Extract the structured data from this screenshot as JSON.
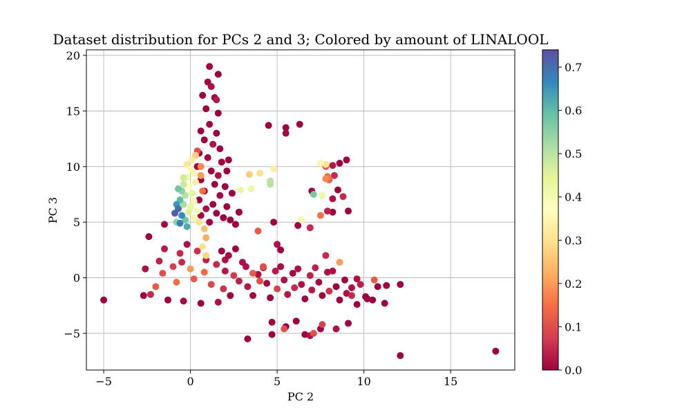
{
  "chart_data": {
    "type": "scatter",
    "title": "Dataset distribution for PCs 2 and 3; Colored by amount of LINALOOL",
    "xlabel": "PC 2",
    "ylabel": "PC 3",
    "xlim": [
      -6.0,
      18.7
    ],
    "ylim": [
      -8.3,
      20.5
    ],
    "xticks": [
      -5,
      0,
      5,
      10,
      15
    ],
    "xtick_labels": [
      "−5",
      "0",
      "5",
      "10",
      "15"
    ],
    "yticks": [
      -5,
      0,
      5,
      10,
      15,
      20
    ],
    "ytick_labels": [
      "−5",
      "0",
      "5",
      "10",
      "15",
      "20"
    ],
    "grid": true,
    "colormap": "Spectral",
    "colorbar": {
      "range": [
        0.0,
        0.74
      ],
      "ticks": [
        0.0,
        0.1,
        0.2,
        0.3,
        0.4,
        0.5,
        0.6,
        0.7
      ],
      "tick_labels": [
        "0.0",
        "0.1",
        "0.2",
        "0.3",
        "0.4",
        "0.5",
        "0.6",
        "0.7"
      ]
    },
    "points": [
      [
        -5.0,
        -2.0,
        0.0
      ],
      [
        -2.6,
        0.8,
        0.02
      ],
      [
        -2.4,
        3.7,
        0.0
      ],
      [
        -1.5,
        4.8,
        0.01
      ],
      [
        -2.7,
        -1.6,
        0.0
      ],
      [
        -2.3,
        -1.5,
        0.05
      ],
      [
        -2.0,
        -0.8,
        0.12
      ],
      [
        -1.5,
        2.6,
        0.03
      ],
      [
        -1.8,
        1.5,
        0.04
      ],
      [
        -1.0,
        1.0,
        0.08
      ],
      [
        -0.6,
        2.2,
        0.05
      ],
      [
        -0.2,
        3.0,
        0.02
      ],
      [
        0.4,
        2.4,
        0.06
      ],
      [
        0.9,
        1.6,
        0.04
      ],
      [
        1.5,
        1.2,
        0.05
      ],
      [
        2.0,
        0.6,
        0.03
      ],
      [
        2.5,
        0.2,
        0.07
      ],
      [
        3.0,
        1.4,
        0.02
      ],
      [
        -1.3,
        -2.0,
        0.0
      ],
      [
        -0.4,
        -2.1,
        0.01
      ],
      [
        0.6,
        -2.3,
        0.0
      ],
      [
        1.6,
        -2.2,
        0.02
      ],
      [
        2.3,
        -1.6,
        0.0
      ],
      [
        -0.8,
        -0.4,
        0.15
      ],
      [
        0.2,
        -0.1,
        0.12
      ],
      [
        0.8,
        0.5,
        0.14
      ],
      [
        1.2,
        -0.6,
        0.09
      ],
      [
        1.9,
        -1.0,
        0.06
      ],
      [
        0.0,
        0.8,
        0.2
      ],
      [
        -1.6,
        0.4,
        0.1
      ],
      [
        -0.5,
        1.4,
        0.05
      ],
      [
        2.8,
        -0.3,
        0.04
      ],
      [
        3.3,
        -0.8,
        0.03
      ],
      [
        3.9,
        0.3,
        0.02
      ],
      [
        4.4,
        -0.5,
        0.01
      ],
      [
        4.9,
        0.6,
        0.03
      ],
      [
        5.4,
        -0.2,
        0.02
      ],
      [
        5.9,
        0.4,
        0.01
      ],
      [
        6.4,
        -0.6,
        0.02
      ],
      [
        6.9,
        0.2,
        0.04
      ],
      [
        7.4,
        -0.4,
        0.01
      ],
      [
        7.9,
        0.5,
        0.02
      ],
      [
        8.4,
        -0.8,
        0.0
      ],
      [
        8.9,
        -0.2,
        0.01
      ],
      [
        9.3,
        -0.9,
        0.02
      ],
      [
        9.8,
        -0.6,
        0.04
      ],
      [
        10.1,
        -1.7,
        0.0
      ],
      [
        3.6,
        -1.6,
        0.01
      ],
      [
        4.6,
        -1.8,
        0.0
      ],
      [
        5.6,
        -1.5,
        0.03
      ],
      [
        6.6,
        -1.9,
        0.0
      ],
      [
        7.6,
        -1.6,
        0.01
      ],
      [
        8.6,
        -2.0,
        0.0
      ],
      [
        3.2,
        1.0,
        0.02
      ],
      [
        4.2,
        0.9,
        0.03
      ],
      [
        5.2,
        1.0,
        0.01
      ],
      [
        6.2,
        0.8,
        0.02
      ],
      [
        7.2,
        0.9,
        0.04
      ],
      [
        8.2,
        0.6,
        0.02
      ],
      [
        5.0,
        -1.0,
        0.08
      ],
      [
        6.0,
        -0.9,
        0.05
      ],
      [
        7.0,
        -1.1,
        0.03
      ],
      [
        8.0,
        -1.2,
        0.06
      ],
      [
        9.0,
        -1.4,
        0.02
      ],
      [
        4.0,
        -0.3,
        0.1
      ],
      [
        2.0,
        1.6,
        0.02
      ],
      [
        1.8,
        2.4,
        0.0
      ],
      [
        2.6,
        2.6,
        0.0
      ],
      [
        2.2,
        2.0,
        0.01
      ],
      [
        1.1,
        19.0,
        0.0
      ],
      [
        1.6,
        18.3,
        0.0
      ],
      [
        1.0,
        17.6,
        0.0
      ],
      [
        1.2,
        17.2,
        0.02
      ],
      [
        0.7,
        16.4,
        0.0
      ],
      [
        1.4,
        16.2,
        0.0
      ],
      [
        1.5,
        16.0,
        0.03
      ],
      [
        0.9,
        15.2,
        0.0
      ],
      [
        1.6,
        14.8,
        0.0
      ],
      [
        1.1,
        13.8,
        0.01
      ],
      [
        0.6,
        13.2,
        0.0
      ],
      [
        1.5,
        13.0,
        0.0
      ],
      [
        0.8,
        12.4,
        0.0
      ],
      [
        1.3,
        12.0,
        0.02
      ],
      [
        1.7,
        11.6,
        0.0
      ],
      [
        0.5,
        11.2,
        0.0
      ],
      [
        1.0,
        10.8,
        0.01
      ],
      [
        1.8,
        10.4,
        0.0
      ],
      [
        0.4,
        10.0,
        0.0
      ],
      [
        1.2,
        9.6,
        0.0
      ],
      [
        1.6,
        9.2,
        0.02
      ],
      [
        0.6,
        8.8,
        0.0
      ],
      [
        1.4,
        8.4,
        0.0
      ],
      [
        2.0,
        8.2,
        0.0
      ],
      [
        0.8,
        7.8,
        0.0
      ],
      [
        1.7,
        7.4,
        0.01
      ],
      [
        0.5,
        7.0,
        0.0
      ],
      [
        1.3,
        6.6,
        0.0
      ],
      [
        2.1,
        6.4,
        0.0
      ],
      [
        0.9,
        6.2,
        0.02
      ],
      [
        1.5,
        5.8,
        0.0
      ],
      [
        0.6,
        5.6,
        0.0
      ],
      [
        1.9,
        5.4,
        0.0
      ],
      [
        1.1,
        5.0,
        0.0
      ],
      [
        2.3,
        5.2,
        0.0
      ],
      [
        2.6,
        4.8,
        0.0
      ],
      [
        2.8,
        5.9,
        0.0
      ],
      [
        2.4,
        7.6,
        0.0
      ],
      [
        2.2,
        10.6,
        0.0
      ],
      [
        2.1,
        9.6,
        0.0
      ],
      [
        0.4,
        11.4,
        0.1
      ],
      [
        0.1,
        10.6,
        0.32
      ],
      [
        0.0,
        9.8,
        0.35
      ],
      [
        -0.2,
        9.0,
        0.42
      ],
      [
        -0.4,
        8.4,
        0.48
      ],
      [
        -0.5,
        7.8,
        0.55
      ],
      [
        -0.3,
        7.4,
        0.5
      ],
      [
        -0.6,
        7.0,
        0.6
      ],
      [
        -0.8,
        6.6,
        0.65
      ],
      [
        -0.7,
        6.2,
        0.7
      ],
      [
        -0.9,
        5.8,
        0.72
      ],
      [
        -0.5,
        5.6,
        0.66
      ],
      [
        -0.3,
        5.2,
        0.58
      ],
      [
        -0.6,
        4.9,
        0.68
      ],
      [
        -0.2,
        4.6,
        0.62
      ],
      [
        -0.8,
        5.0,
        0.55
      ],
      [
        -0.1,
        5.9,
        0.45
      ],
      [
        -0.4,
        6.6,
        0.52
      ],
      [
        0.2,
        6.9,
        0.4
      ],
      [
        -0.1,
        8.2,
        0.38
      ],
      [
        0.3,
        8.6,
        0.33
      ],
      [
        0.1,
        7.6,
        0.44
      ],
      [
        0.4,
        6.0,
        0.36
      ],
      [
        0.5,
        5.0,
        0.3
      ],
      [
        0.8,
        4.4,
        0.25
      ],
      [
        0.9,
        3.6,
        0.22
      ],
      [
        0.7,
        2.8,
        0.3
      ],
      [
        0.9,
        2.0,
        0.28
      ],
      [
        0.2,
        9.4,
        0.41
      ],
      [
        -0.2,
        10.2,
        0.31
      ],
      [
        0.3,
        11.0,
        0.27
      ],
      [
        0.6,
        10.0,
        0.18
      ],
      [
        0.6,
        9.2,
        0.2
      ],
      [
        0.7,
        7.8,
        0.15
      ],
      [
        -0.4,
        9.0,
        0.47
      ],
      [
        -0.7,
        8.0,
        0.58
      ],
      [
        0.0,
        6.4,
        0.43
      ],
      [
        0.2,
        5.4,
        0.34
      ],
      [
        4.5,
        13.7,
        0.0
      ],
      [
        5.5,
        13.5,
        0.0
      ],
      [
        6.3,
        13.8,
        0.0
      ],
      [
        5.5,
        13.0,
        0.01
      ],
      [
        3.4,
        9.3,
        0.27
      ],
      [
        4.0,
        9.4,
        0.3
      ],
      [
        4.8,
        9.8,
        0.33
      ],
      [
        2.9,
        7.9,
        0.43
      ],
      [
        3.5,
        8.0,
        0.42
      ],
      [
        4.6,
        8.7,
        0.5
      ],
      [
        4.6,
        8.4,
        0.5
      ],
      [
        2.8,
        5.9,
        0.0
      ],
      [
        3.9,
        4.2,
        0.12
      ],
      [
        4.8,
        5.0,
        0.0
      ],
      [
        5.0,
        3.0,
        0.02
      ],
      [
        5.2,
        2.5,
        0.0
      ],
      [
        4.2,
        1.0,
        0.1
      ],
      [
        3.6,
        0.4,
        0.12
      ],
      [
        6.2,
        4.7,
        0.0
      ],
      [
        6.4,
        5.2,
        0.35
      ],
      [
        7.0,
        7.8,
        0.0
      ],
      [
        6.9,
        4.5,
        0.05
      ],
      [
        7.1,
        7.5,
        0.57
      ],
      [
        7.6,
        7.4,
        0.42
      ],
      [
        7.5,
        5.6,
        0.15
      ],
      [
        7.9,
        6.0,
        0.04
      ],
      [
        8.2,
        5.9,
        0.0
      ],
      [
        8.8,
        7.3,
        0.05
      ],
      [
        9.1,
        6.0,
        0.0
      ],
      [
        8.2,
        7.1,
        0.02
      ],
      [
        7.8,
        10.0,
        0.12
      ],
      [
        7.5,
        10.3,
        0.35
      ],
      [
        7.8,
        10.2,
        0.31
      ],
      [
        8.2,
        10.1,
        0.03
      ],
      [
        8.6,
        10.3,
        0.0
      ],
      [
        9.0,
        10.6,
        0.0
      ],
      [
        7.8,
        8.9,
        0.18
      ],
      [
        7.9,
        9.1,
        0.15
      ],
      [
        8.3,
        9.2,
        0.05
      ],
      [
        8.0,
        8.8,
        0.14
      ],
      [
        8.5,
        7.9,
        0.0
      ],
      [
        7.8,
        2.0,
        0.05
      ],
      [
        8.6,
        1.4,
        0.2
      ],
      [
        9.6,
        -0.1,
        0.02
      ],
      [
        10.6,
        -0.2,
        0.12
      ],
      [
        10.8,
        -0.8,
        0.0
      ],
      [
        11.3,
        -0.7,
        0.0
      ],
      [
        12.1,
        -0.6,
        0.0
      ],
      [
        10.5,
        -2.0,
        0.0
      ],
      [
        11.2,
        -2.3,
        0.0
      ],
      [
        9.1,
        -4.1,
        0.0
      ],
      [
        8.4,
        -4.6,
        0.02
      ],
      [
        7.6,
        -4.2,
        0.08
      ],
      [
        7.5,
        -4.6,
        0.0
      ],
      [
        7.1,
        -5.0,
        0.1
      ],
      [
        6.9,
        -5.2,
        0.02
      ],
      [
        6.6,
        -5.1,
        0.0
      ],
      [
        6.1,
        -3.9,
        0.0
      ],
      [
        5.4,
        -4.6,
        0.1
      ],
      [
        5.5,
        -4.4,
        0.0
      ],
      [
        4.7,
        -4.0,
        0.0
      ],
      [
        4.7,
        -5.1,
        0.0
      ],
      [
        3.3,
        -5.5,
        0.0
      ],
      [
        12.1,
        -7.0,
        0.0
      ],
      [
        17.6,
        -6.6,
        0.0
      ],
      [
        9.6,
        -2.4,
        0.0
      ],
      [
        10.2,
        -1.9,
        0.0
      ],
      [
        9.3,
        -1.6,
        0.05
      ]
    ]
  }
}
